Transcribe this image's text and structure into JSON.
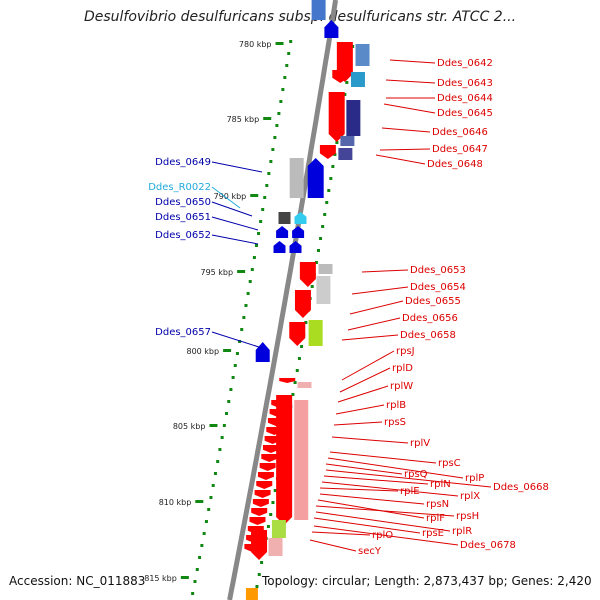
{
  "title": "Desulfovibrio desulfuricans subsp. desulfuricans str. ATCC 2...",
  "footer": {
    "accession": "Accession: NC_011883",
    "topology": "Topology: circular; Length: 2,873,437 bp; Genes: 2,420"
  },
  "colors": {
    "forward_strand": "#ff0000",
    "reverse_strand": "#0000dd",
    "rna": "#33ccee",
    "backbone": "#888888",
    "tick": "#118811",
    "label_forward": "#dd0000",
    "label_reverse": "#0000aa",
    "label_rna": "#22aadd"
  },
  "kbp_ticks": [
    "780 kbp",
    "785 kbp",
    "790 kbp",
    "795 kbp",
    "800 kbp",
    "805 kbp",
    "810 kbp",
    "815 kbp"
  ],
  "left_labels": [
    {
      "text": "Ddes_0649",
      "kind": "reverse"
    },
    {
      "text": "Ddes_R0022",
      "kind": "rna"
    },
    {
      "text": "Ddes_0650",
      "kind": "reverse"
    },
    {
      "text": "Ddes_0651",
      "kind": "reverse"
    },
    {
      "text": "Ddes_0652",
      "kind": "reverse"
    },
    {
      "text": "Ddes_0657",
      "kind": "reverse"
    }
  ],
  "right_labels": [
    "Ddes_0642",
    "Ddes_0643",
    "Ddes_0644",
    "Ddes_0645",
    "Ddes_0646",
    "Ddes_0647",
    "Ddes_0648",
    "Ddes_0653",
    "Ddes_0654",
    "Ddes_0655",
    "Ddes_0656",
    "Ddes_0658",
    "rpsJ",
    "rplD",
    "rplW",
    "rplB",
    "rpsS",
    "rplV",
    "rpsC",
    "rplP",
    "rpsQ",
    "Ddes_0668",
    "rplN",
    "rplX",
    "rplE",
    "rpsN",
    "rplF",
    "rpsH",
    "rplR",
    "rpsE",
    "Ddes_0678",
    "rplO",
    "secY"
  ]
}
